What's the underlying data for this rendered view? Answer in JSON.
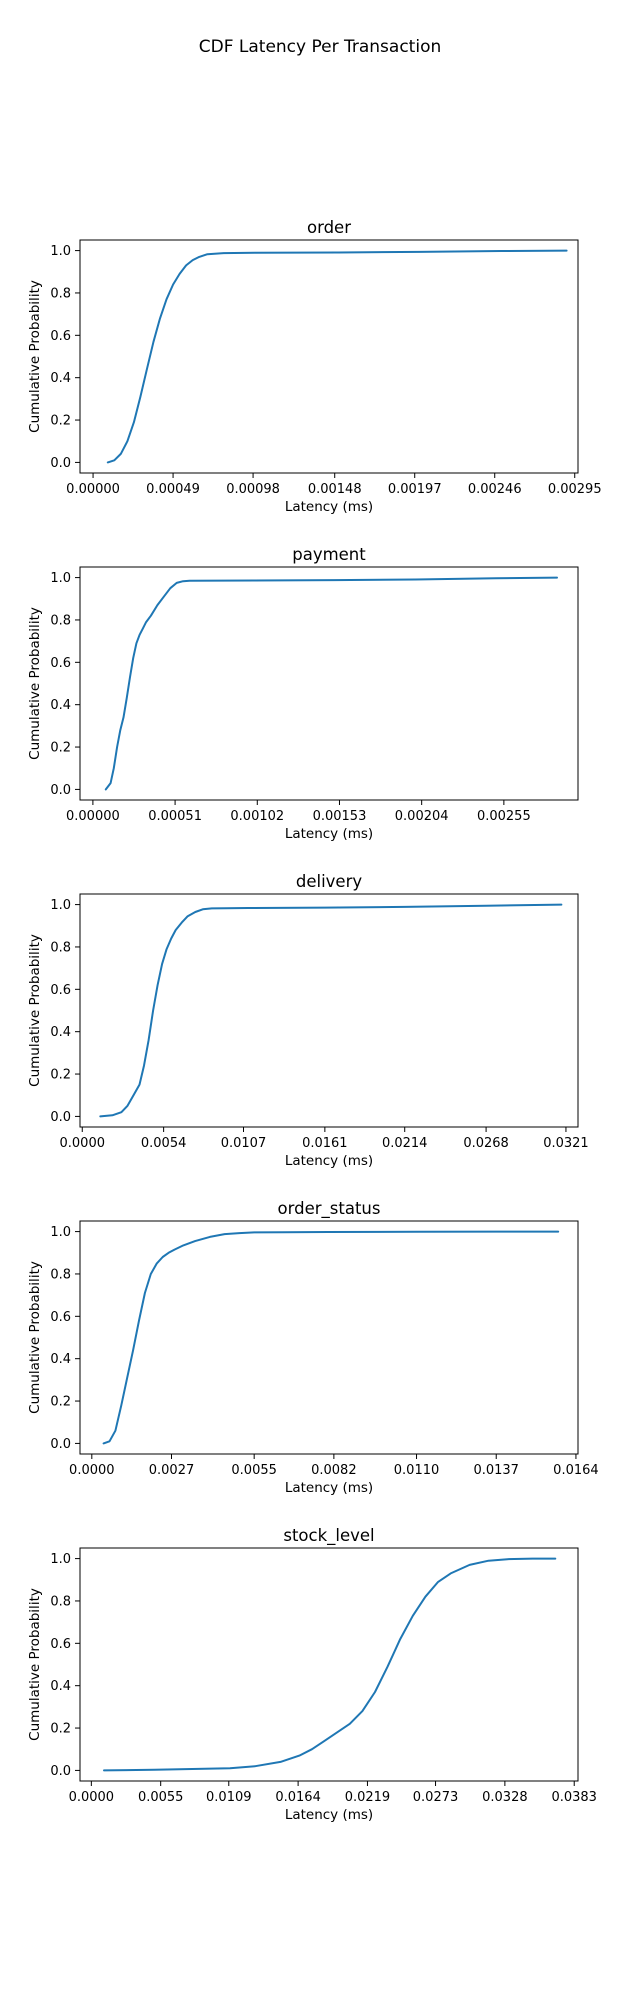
{
  "figure": {
    "title": "CDF Latency Per Transaction"
  },
  "chart_data": [
    {
      "type": "line",
      "title": "order",
      "xlabel": "Latency (ms)",
      "ylabel": "Cumulative Probability",
      "xlim": [
        -8e-05,
        0.00297
      ],
      "ylim": [
        -0.05,
        1.05
      ],
      "xticks": [
        0.0,
        0.00049,
        0.00098,
        0.00148,
        0.00197,
        0.00246,
        0.00295
      ],
      "xtick_labels": [
        "0.00000",
        "0.00049",
        "0.00098",
        "0.00148",
        "0.00197",
        "0.00246",
        "0.00295"
      ],
      "yticks": [
        0.0,
        0.2,
        0.4,
        0.6,
        0.8,
        1.0
      ],
      "ytick_labels": [
        "0.0",
        "0.2",
        "0.4",
        "0.6",
        "0.8",
        "1.0"
      ],
      "grid": false,
      "series": [
        {
          "color": "#1f77b4",
          "x": [
            9e-05,
            0.00013,
            0.00017,
            0.00021,
            0.00025,
            0.00029,
            0.00033,
            0.00037,
            0.00041,
            0.00045,
            0.00049,
            0.00053,
            0.00057,
            0.00061,
            0.00065,
            0.0007,
            0.0008,
            0.001,
            0.0015,
            0.002,
            0.0025,
            0.0029
          ],
          "y": [
            0.0,
            0.01,
            0.04,
            0.1,
            0.19,
            0.31,
            0.44,
            0.57,
            0.68,
            0.77,
            0.84,
            0.89,
            0.93,
            0.955,
            0.97,
            0.983,
            0.988,
            0.99,
            0.991,
            0.994,
            0.998,
            1.0
          ]
        }
      ]
    },
    {
      "type": "line",
      "title": "payment",
      "xlabel": "Latency (ms)",
      "ylabel": "Cumulative Probability",
      "xlim": [
        -8e-05,
        0.00301
      ],
      "ylim": [
        -0.05,
        1.05
      ],
      "xticks": [
        0.0,
        0.00051,
        0.00102,
        0.00153,
        0.00204,
        0.00255
      ],
      "xtick_labels": [
        "0.00000",
        "0.00051",
        "0.00102",
        "0.00153",
        "0.00204",
        "0.00255"
      ],
      "yticks": [
        0.0,
        0.2,
        0.4,
        0.6,
        0.8,
        1.0
      ],
      "ytick_labels": [
        "0.0",
        "0.2",
        "0.4",
        "0.6",
        "0.8",
        "1.0"
      ],
      "grid": false,
      "series": [
        {
          "color": "#1f77b4",
          "x": [
            8e-05,
            0.00011,
            0.00013,
            0.00015,
            0.00017,
            0.00019,
            0.00021,
            0.00023,
            0.00025,
            0.00027,
            0.00029,
            0.00031,
            0.00033,
            0.00036,
            0.0004,
            0.00044,
            0.00048,
            0.00052,
            0.00056,
            0.0006,
            0.0008,
            0.0015,
            0.002,
            0.0025,
            0.00288
          ],
          "y": [
            0.0,
            0.03,
            0.1,
            0.2,
            0.28,
            0.34,
            0.43,
            0.53,
            0.62,
            0.69,
            0.73,
            0.76,
            0.79,
            0.82,
            0.87,
            0.91,
            0.95,
            0.975,
            0.983,
            0.985,
            0.986,
            0.988,
            0.991,
            0.997,
            1.0
          ]
        }
      ]
    },
    {
      "type": "line",
      "title": "delivery",
      "xlabel": "Latency (ms)",
      "ylabel": "Cumulative Probability",
      "xlim": [
        -0.00015,
        0.0329
      ],
      "ylim": [
        -0.05,
        1.05
      ],
      "xticks": [
        0.0,
        0.0054,
        0.0107,
        0.0161,
        0.0214,
        0.0268,
        0.0321
      ],
      "xtick_labels": [
        "0.0000",
        "0.0054",
        "0.0107",
        "0.0161",
        "0.0214",
        "0.0268",
        "0.0321"
      ],
      "yticks": [
        0.0,
        0.2,
        0.4,
        0.6,
        0.8,
        1.0
      ],
      "ytick_labels": [
        "0.0",
        "0.2",
        "0.4",
        "0.6",
        "0.8",
        "1.0"
      ],
      "grid": false,
      "series": [
        {
          "color": "#1f77b4",
          "x": [
            0.0012,
            0.002,
            0.0026,
            0.003,
            0.0034,
            0.0038,
            0.0041,
            0.0044,
            0.0047,
            0.005,
            0.0053,
            0.0056,
            0.0059,
            0.0062,
            0.0066,
            0.007,
            0.0075,
            0.008,
            0.0086,
            0.0095,
            0.011,
            0.0161,
            0.0214,
            0.0268,
            0.0318
          ],
          "y": [
            0.0,
            0.005,
            0.02,
            0.05,
            0.1,
            0.15,
            0.24,
            0.36,
            0.5,
            0.62,
            0.72,
            0.79,
            0.84,
            0.88,
            0.915,
            0.945,
            0.965,
            0.978,
            0.982,
            0.983,
            0.984,
            0.986,
            0.989,
            0.995,
            1.0
          ]
        }
      ]
    },
    {
      "type": "line",
      "title": "order_status",
      "xlabel": "Latency (ms)",
      "ylabel": "Cumulative Probability",
      "xlim": [
        -0.0004,
        0.01647
      ],
      "ylim": [
        -0.05,
        1.05
      ],
      "xticks": [
        0.0,
        0.0027,
        0.0055,
        0.0082,
        0.011,
        0.0137,
        0.0164
      ],
      "xtick_labels": [
        "0.0000",
        "0.0027",
        "0.0055",
        "0.0082",
        "0.0110",
        "0.0137",
        "0.0164"
      ],
      "yticks": [
        0.0,
        0.2,
        0.4,
        0.6,
        0.8,
        1.0
      ],
      "ytick_labels": [
        "0.0",
        "0.2",
        "0.4",
        "0.6",
        "0.8",
        "1.0"
      ],
      "grid": false,
      "series": [
        {
          "color": "#1f77b4",
          "x": [
            0.0004,
            0.0006,
            0.0008,
            0.001,
            0.0012,
            0.0014,
            0.0016,
            0.0018,
            0.002,
            0.0022,
            0.0024,
            0.0026,
            0.0028,
            0.0031,
            0.0035,
            0.004,
            0.0045,
            0.005,
            0.0055,
            0.0065,
            0.008,
            0.011,
            0.0137,
            0.0158
          ],
          "y": [
            0.0,
            0.01,
            0.06,
            0.18,
            0.31,
            0.44,
            0.58,
            0.71,
            0.8,
            0.85,
            0.88,
            0.9,
            0.915,
            0.935,
            0.955,
            0.975,
            0.988,
            0.993,
            0.996,
            0.997,
            0.998,
            0.999,
            1.0,
            1.0
          ]
        }
      ]
    },
    {
      "type": "line",
      "title": "stock_level",
      "xlabel": "Latency (ms)",
      "ylabel": "Cumulative Probability",
      "xlim": [
        -0.0009,
        0.0386
      ],
      "ylim": [
        -0.05,
        1.05
      ],
      "xticks": [
        0.0,
        0.0055,
        0.0109,
        0.0164,
        0.0219,
        0.0273,
        0.0328,
        0.0383
      ],
      "xtick_labels": [
        "0.0000",
        "0.0055",
        "0.0109",
        "0.0164",
        "0.0219",
        "0.0273",
        "0.0328",
        "0.0383"
      ],
      "yticks": [
        0.0,
        0.2,
        0.4,
        0.6,
        0.8,
        1.0
      ],
      "ytick_labels": [
        "0.0",
        "0.2",
        "0.4",
        "0.6",
        "0.8",
        "1.0"
      ],
      "grid": false,
      "series": [
        {
          "color": "#1f77b4",
          "x": [
            0.001,
            0.005,
            0.011,
            0.013,
            0.015,
            0.0165,
            0.0175,
            0.0185,
            0.0195,
            0.0205,
            0.0215,
            0.0225,
            0.0235,
            0.0245,
            0.0255,
            0.0265,
            0.0275,
            0.0285,
            0.03,
            0.0315,
            0.033,
            0.035,
            0.0368
          ],
          "y": [
            0.0,
            0.003,
            0.01,
            0.02,
            0.04,
            0.07,
            0.1,
            0.14,
            0.18,
            0.22,
            0.28,
            0.37,
            0.49,
            0.62,
            0.73,
            0.82,
            0.89,
            0.93,
            0.97,
            0.99,
            0.997,
            1.0,
            1.0
          ]
        }
      ]
    }
  ]
}
